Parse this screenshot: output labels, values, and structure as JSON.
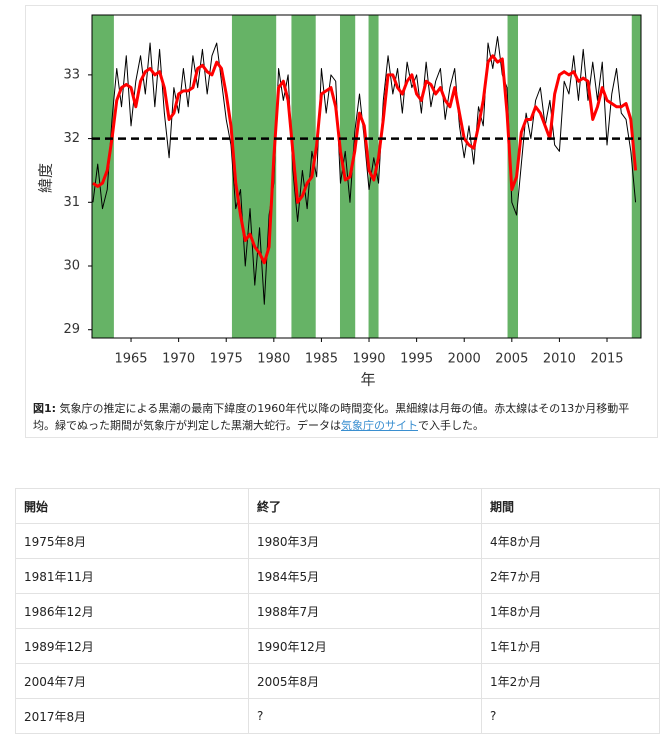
{
  "chart_data": {
    "type": "line",
    "xlabel": "年",
    "ylabel": "緯度",
    "x": [
      1961.0,
      1961.5,
      1962.0,
      1962.5,
      1963.0,
      1963.5,
      1964.0,
      1964.5,
      1965.0,
      1965.5,
      1966.0,
      1966.5,
      1967.0,
      1967.5,
      1968.0,
      1968.5,
      1969.0,
      1969.5,
      1970.0,
      1970.5,
      1971.0,
      1971.5,
      1972.0,
      1972.5,
      1973.0,
      1973.5,
      1974.0,
      1974.5,
      1975.0,
      1975.5,
      1976.0,
      1976.5,
      1977.0,
      1977.5,
      1978.0,
      1978.5,
      1979.0,
      1979.5,
      1980.0,
      1980.5,
      1981.0,
      1981.5,
      1982.0,
      1982.5,
      1983.0,
      1983.5,
      1984.0,
      1984.5,
      1985.0,
      1985.5,
      1986.0,
      1986.5,
      1987.0,
      1987.5,
      1988.0,
      1988.5,
      1989.0,
      1989.5,
      1990.0,
      1990.5,
      1991.0,
      1991.5,
      1992.0,
      1992.5,
      1993.0,
      1993.5,
      1994.0,
      1994.5,
      1995.0,
      1995.5,
      1996.0,
      1996.5,
      1997.0,
      1997.5,
      1998.0,
      1998.5,
      1999.0,
      1999.5,
      2000.0,
      2000.5,
      2001.0,
      2001.5,
      2002.0,
      2002.5,
      2003.0,
      2003.5,
      2004.0,
      2004.5,
      2005.0,
      2005.5,
      2006.0,
      2006.5,
      2007.0,
      2007.5,
      2008.0,
      2008.5,
      2009.0,
      2009.5,
      2010.0,
      2010.5,
      2011.0,
      2011.5,
      2012.0,
      2012.5,
      2013.0,
      2013.5,
      2014.0,
      2014.5,
      2015.0,
      2015.5,
      2016.0,
      2016.5,
      2017.0,
      2017.5,
      2018.0
    ],
    "series": [
      {
        "color": "#000000",
        "values": [
          31.0,
          31.6,
          30.9,
          31.2,
          32.3,
          33.1,
          32.5,
          33.3,
          32.2,
          32.9,
          33.3,
          32.7,
          33.5,
          32.5,
          33.4,
          32.4,
          31.7,
          32.8,
          32.4,
          33.1,
          32.5,
          33.3,
          32.8,
          33.4,
          32.7,
          33.3,
          33.5,
          32.9,
          32.3,
          31.9,
          30.9,
          31.2,
          30.0,
          30.9,
          29.7,
          30.6,
          29.4,
          30.8,
          31.3,
          33.1,
          32.6,
          33.0,
          31.5,
          30.7,
          31.5,
          30.9,
          31.8,
          31.4,
          33.1,
          32.4,
          33.0,
          32.9,
          31.3,
          31.8,
          31.0,
          32.1,
          32.7,
          32.0,
          31.2,
          31.7,
          31.3,
          32.6,
          33.3,
          32.7,
          33.1,
          32.4,
          33.2,
          32.8,
          33.0,
          32.4,
          33.2,
          32.5,
          32.9,
          33.1,
          32.3,
          32.8,
          33.1,
          32.2,
          31.7,
          32.2,
          31.6,
          32.5,
          32.2,
          33.5,
          33.1,
          33.6,
          33.0,
          32.8,
          31.0,
          30.8,
          31.6,
          32.4,
          32.0,
          32.6,
          32.8,
          32.2,
          32.6,
          31.9,
          31.8,
          32.9,
          32.7,
          33.3,
          32.6,
          33.4,
          32.6,
          33.2,
          32.6,
          33.2,
          31.9,
          32.7,
          33.1,
          32.4,
          32.3,
          31.8,
          31.0
        ],
        "width": 1
      },
      {
        "color": "#ff0000",
        "values": [
          31.3,
          31.25,
          31.3,
          31.5,
          32.0,
          32.6,
          32.8,
          32.85,
          32.8,
          32.5,
          32.9,
          33.05,
          33.1,
          33.0,
          33.05,
          32.8,
          32.3,
          32.4,
          32.7,
          32.75,
          32.75,
          32.8,
          33.1,
          33.15,
          33.05,
          33.0,
          33.2,
          33.1,
          32.7,
          32.2,
          31.3,
          30.8,
          30.4,
          30.5,
          30.3,
          30.2,
          30.05,
          30.3,
          31.7,
          32.8,
          32.9,
          32.6,
          31.8,
          31.0,
          31.1,
          31.3,
          31.4,
          31.9,
          32.7,
          32.75,
          32.8,
          32.5,
          31.8,
          31.35,
          31.4,
          31.8,
          32.4,
          32.2,
          31.5,
          31.35,
          31.7,
          32.3,
          33.0,
          33.0,
          32.8,
          32.7,
          32.9,
          33.0,
          32.7,
          32.6,
          32.9,
          32.85,
          32.7,
          32.8,
          32.6,
          32.5,
          32.8,
          32.4,
          32.0,
          31.9,
          31.85,
          32.2,
          32.6,
          33.2,
          33.3,
          33.2,
          33.25,
          32.4,
          31.2,
          31.4,
          32.1,
          32.3,
          32.3,
          32.5,
          32.4,
          32.2,
          32.0,
          32.7,
          33.0,
          33.05,
          33.0,
          33.05,
          32.9,
          32.95,
          32.9,
          32.3,
          32.5,
          32.8,
          32.6,
          32.55,
          32.5,
          32.5,
          32.55,
          32.3,
          31.5
        ],
        "width": 3
      }
    ],
    "periods": [
      [
        1960.9,
        1963.2
      ],
      [
        1975.6,
        1980.25
      ],
      [
        1981.85,
        1984.4
      ],
      [
        1986.95,
        1988.55
      ],
      [
        1989.95,
        1991.0
      ],
      [
        2004.55,
        2005.65
      ],
      [
        2017.6,
        2018.57
      ]
    ],
    "period_color": "#66b366",
    "hline": 32,
    "xlim": [
      1960.9,
      2018.57
    ],
    "ylim": [
      28.87,
      33.94
    ],
    "xticks": [
      1965,
      1970,
      1975,
      1980,
      1985,
      1990,
      1995,
      2000,
      2005,
      2010,
      2015
    ],
    "yticks": [
      29,
      30,
      31,
      32,
      33
    ]
  },
  "caption": {
    "label": "図1:",
    "text": " 気象庁の推定による黒潮の最南下緯度の1960年代以降の時間変化。黒細線は月毎の値。赤太線はその13か月移動平均。緑でぬった期間が気象庁が判定した黒潮大蛇行。データは",
    "link": "気象庁のサイト",
    "text_after": "で入手した。"
  },
  "table": {
    "header": [
      "開始",
      "終了",
      "期間"
    ],
    "rows": [
      [
        "1975年8月",
        "1980年3月",
        "4年8か月"
      ],
      [
        "1981年11月",
        "1984年5月",
        "2年7か月"
      ],
      [
        "1986年12月",
        "1988年7月",
        "1年8か月"
      ],
      [
        "1989年12月",
        "1990年12月",
        "1年1か月"
      ],
      [
        "2004年7月",
        "2005年8月",
        "1年2か月"
      ],
      [
        "2017年8月",
        "?",
        "?"
      ]
    ]
  }
}
